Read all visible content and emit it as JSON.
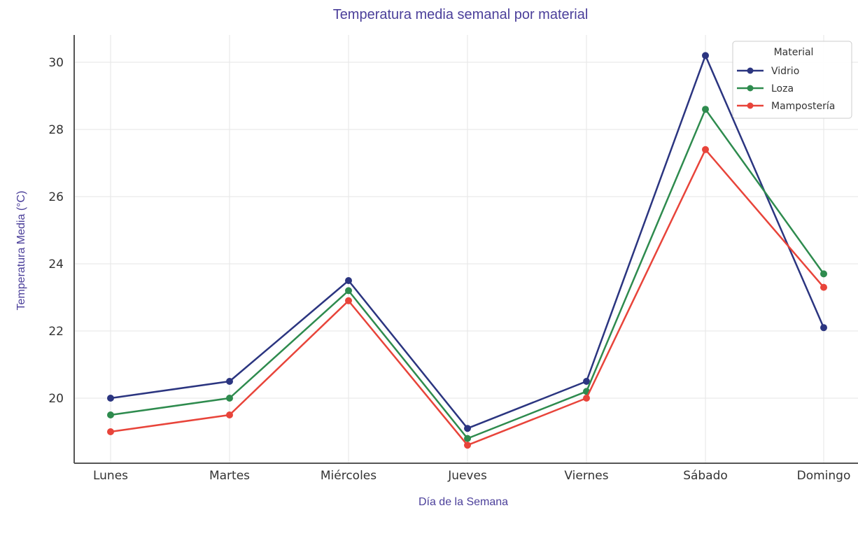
{
  "chart_data": {
    "type": "line",
    "title": "Temperatura media semanal por material",
    "xlabel": "Día de la Semana",
    "ylabel": "Temperatura Media  (°C)",
    "categories": [
      "Lunes",
      "Martes",
      "Miércoles",
      "Jueves",
      "Viernes",
      "Sábado",
      "Domingo"
    ],
    "ylim": [
      18.1,
      30.8
    ],
    "yticks": [
      20,
      22,
      24,
      26,
      28,
      30
    ],
    "grid": true,
    "legend": {
      "title": "Material",
      "placement": "top-right"
    },
    "series": [
      {
        "name": "Vidrio",
        "color": "#2b3580",
        "values": [
          20.0,
          20.5,
          23.5,
          19.1,
          20.5,
          30.2,
          22.1
        ]
      },
      {
        "name": "Loza",
        "color": "#2e8b4e",
        "values": [
          19.5,
          20.0,
          23.2,
          18.8,
          20.2,
          28.6,
          23.7
        ]
      },
      {
        "name": "Mampostería",
        "color": "#e8443a",
        "values": [
          19.0,
          19.5,
          22.9,
          18.6,
          20.0,
          27.4,
          23.3
        ]
      }
    ]
  }
}
